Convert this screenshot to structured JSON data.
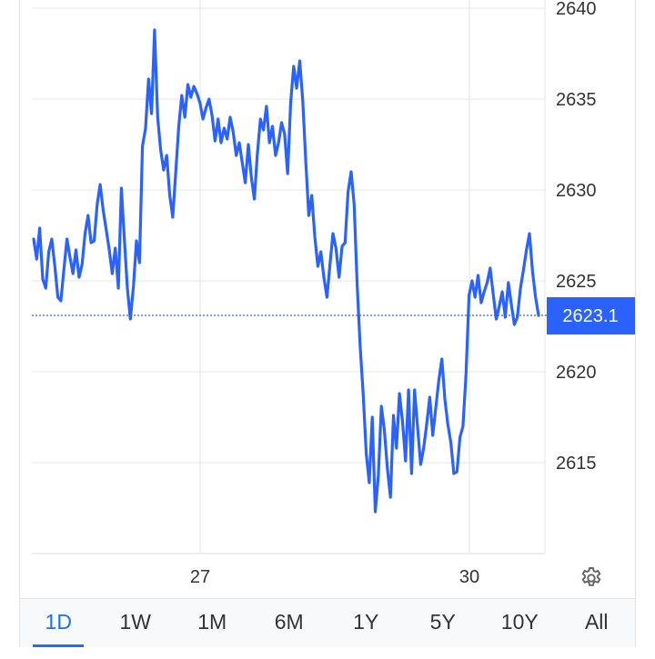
{
  "chart_data": {
    "type": "line",
    "x_ticks": [
      "27",
      "30"
    ],
    "y_ticks": [
      2615,
      2620,
      2625,
      2630,
      2635,
      2640
    ],
    "ylim": [
      2610,
      2640
    ],
    "current_price": 2623.1,
    "current_price_label": "2623.1",
    "grid": true,
    "colors": {
      "line": "#2962ff",
      "price_box": "#2962ff",
      "reference": "#2962ff",
      "grid": "#e6e6e6"
    },
    "series": [
      {
        "values": [
          2627.3,
          2626.2,
          2627.9,
          2625.1,
          2624.6,
          2626.6,
          2627.3,
          2625.8,
          2624.1,
          2623.9,
          2625.6,
          2627.3,
          2626.3,
          2625.4,
          2626.7,
          2625.2,
          2625.9,
          2627.6,
          2628.6,
          2627.1,
          2627.2,
          2629.2,
          2630.3,
          2628.9,
          2627.8,
          2626.7,
          2625.4,
          2626.8,
          2624.6,
          2630.1,
          2627.3,
          2624.6,
          2622.9,
          2624.7,
          2627.2,
          2626.0,
          2632.4,
          2633.4,
          2636.1,
          2634.2,
          2638.8,
          2634.0,
          2632.2,
          2631.1,
          2631.9,
          2629.7,
          2628.5,
          2631.0,
          2633.5,
          2635.2,
          2634.0,
          2635.8,
          2635.1,
          2635.7,
          2635.3,
          2634.8,
          2633.9,
          2634.5,
          2635.0,
          2634.1,
          2632.7,
          2633.9,
          2632.6,
          2633.4,
          2632.8,
          2634.0,
          2633.2,
          2631.9,
          2632.6,
          2631.5,
          2630.4,
          2632.5,
          2630.7,
          2629.5,
          2632.0,
          2633.9,
          2633.3,
          2634.6,
          2632.6,
          2633.5,
          2631.9,
          2632.6,
          2633.7,
          2633.1,
          2630.9,
          2634.8,
          2636.8,
          2635.6,
          2637.1,
          2634.9,
          2631.6,
          2628.6,
          2629.7,
          2627.4,
          2625.8,
          2626.6,
          2625.2,
          2624.1,
          2625.9,
          2627.6,
          2626.8,
          2625.2,
          2626.9,
          2627.1,
          2629.9,
          2631.0,
          2629.2,
          2624.8,
          2621.4,
          2618.8,
          2615.5,
          2613.9,
          2617.5,
          2612.3,
          2614.3,
          2618.1,
          2616.8,
          2614.7,
          2613.1,
          2617.6,
          2615.8,
          2618.8,
          2617.3,
          2615.1,
          2619.0,
          2614.4,
          2619.0,
          2616.9,
          2614.9,
          2615.8,
          2617.1,
          2618.6,
          2616.5,
          2618.0,
          2619.5,
          2620.7,
          2618.5,
          2617.1,
          2616.1,
          2614.4,
          2614.5,
          2616.4,
          2617.0,
          2619.8,
          2624.2,
          2625.0,
          2624.1,
          2625.3,
          2623.8,
          2624.4,
          2624.9,
          2625.7,
          2624.3,
          2622.9,
          2623.6,
          2624.4,
          2623.0,
          2624.9,
          2623.7,
          2622.6,
          2623.0,
          2624.6,
          2625.6,
          2626.7,
          2627.6,
          2625.5,
          2624.1,
          2623.1
        ]
      }
    ]
  },
  "settings_icon": "gear-icon",
  "range_tabs": [
    {
      "label": "1D",
      "active": true
    },
    {
      "label": "1W",
      "active": false
    },
    {
      "label": "1M",
      "active": false
    },
    {
      "label": "6M",
      "active": false
    },
    {
      "label": "1Y",
      "active": false
    },
    {
      "label": "5Y",
      "active": false
    },
    {
      "label": "10Y",
      "active": false
    },
    {
      "label": "All",
      "active": false
    }
  ]
}
